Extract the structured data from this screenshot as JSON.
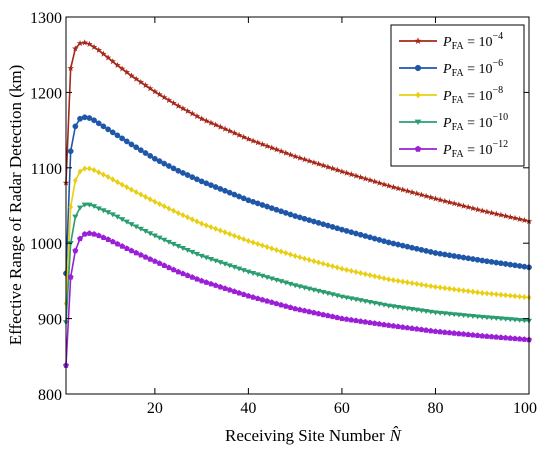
{
  "chart_data": {
    "type": "line",
    "xlabel": "Receiving Site Number",
    "xlabel_symbol": "N̂",
    "ylabel": "Effective Range of Radar Detection  (km)",
    "xlim": [
      1,
      100
    ],
    "ylim": [
      800,
      1300
    ],
    "xticks": [
      20,
      40,
      60,
      80,
      100
    ],
    "yticks": [
      800,
      900,
      1000,
      1100,
      1200,
      1300
    ],
    "grid": false,
    "legend_position": "top-right",
    "x": [
      1,
      2,
      3,
      4,
      5,
      6,
      7,
      8,
      10,
      12,
      15,
      20,
      25,
      30,
      40,
      50,
      60,
      70,
      80,
      90,
      100
    ],
    "series": [
      {
        "name": "P_FA = 10^-4",
        "label_base": "P",
        "label_sub": "FA",
        "label_eq": " = 10",
        "label_exp": "−4",
        "color": "#a5281b",
        "marker": "star",
        "values": [
          1080,
          1232,
          1258,
          1265,
          1266,
          1264,
          1260,
          1256,
          1246,
          1236,
          1222,
          1201,
          1182,
          1165,
          1138,
          1115,
          1095,
          1076,
          1059,
          1043,
          1029
        ]
      },
      {
        "name": "P_FA = 10^-6",
        "label_base": "P",
        "label_sub": "FA",
        "label_eq": " = 10",
        "label_exp": "−6",
        "color": "#1f57a8",
        "marker": "circle",
        "values": [
          960,
          1122,
          1155,
          1165,
          1167,
          1166,
          1163,
          1159,
          1151,
          1143,
          1131,
          1112,
          1096,
          1082,
          1057,
          1036,
          1018,
          1001,
          987,
          977,
          968
        ]
      },
      {
        "name": "P_FA = 10^-8",
        "label_base": "P",
        "label_sub": "FA",
        "label_eq": " = 10",
        "label_exp": "−8",
        "color": "#e8cf10",
        "marker": "diamond",
        "values": [
          920,
          1048,
          1083,
          1095,
          1099,
          1099,
          1097,
          1094,
          1088,
          1081,
          1071,
          1055,
          1040,
          1026,
          1003,
          983,
          966,
          952,
          942,
          934,
          928
        ]
      },
      {
        "name": "P_FA = 10^-10",
        "label_base": "P",
        "label_sub": "FA",
        "label_eq": " = 10",
        "label_exp": "−10",
        "color": "#2a9e70",
        "marker": "triangle-down",
        "values": [
          895,
          1000,
          1035,
          1047,
          1051,
          1051,
          1049,
          1046,
          1041,
          1035,
          1025,
          1010,
          996,
          983,
          962,
          944,
          929,
          917,
          908,
          902,
          897
        ]
      },
      {
        "name": "P_FA = 10^-12",
        "label_base": "P",
        "label_sub": "FA",
        "label_eq": " = 10",
        "label_exp": "−12",
        "color": "#9b1fd6",
        "marker": "pentagon",
        "values": [
          838,
          955,
          990,
          1006,
          1012,
          1013,
          1012,
          1010,
          1005,
          999,
          990,
          976,
          962,
          950,
          930,
          913,
          900,
          891,
          883,
          877,
          872
        ]
      }
    ]
  }
}
